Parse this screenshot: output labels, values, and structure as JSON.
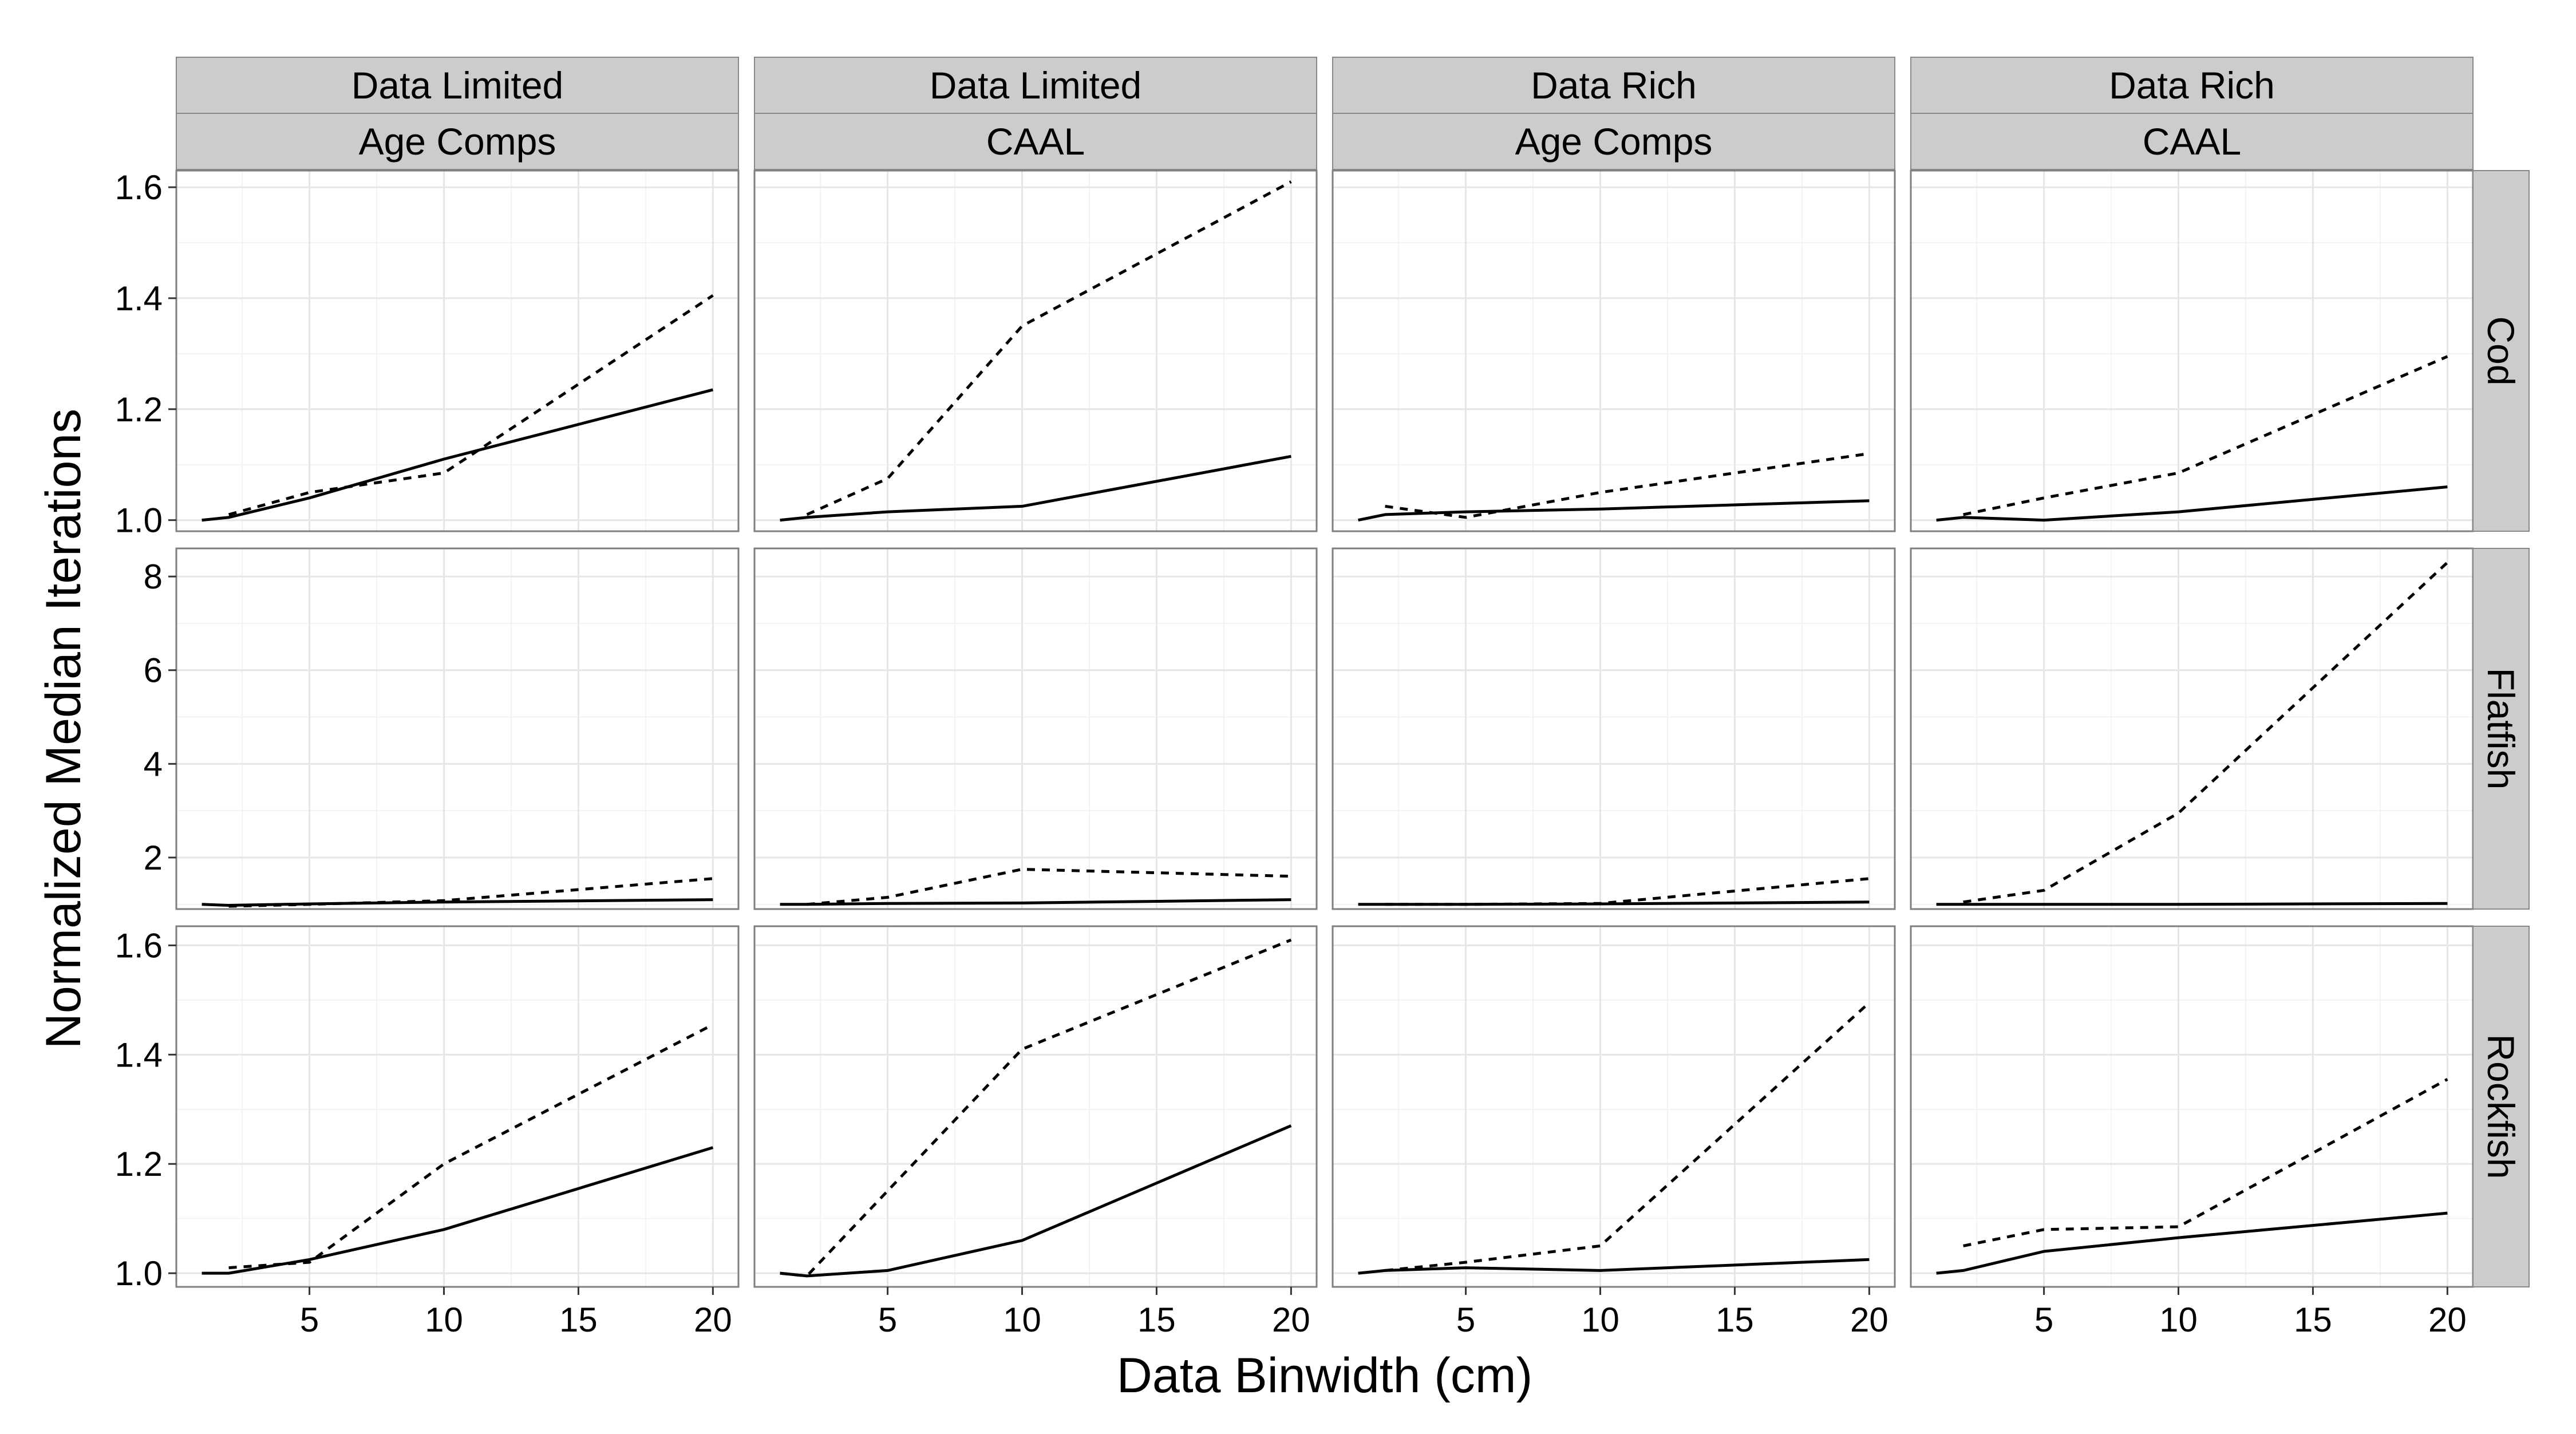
{
  "chart_data": {
    "type": "line",
    "xlabel": "Data Binwidth (cm)",
    "ylabel": "Normalized Median Iterations",
    "grid": true,
    "legend": "none",
    "x_ticks": [
      5,
      10,
      15,
      20
    ],
    "x_range": [
      0.05,
      20.95
    ],
    "col_strips": [
      {
        "top": "Data Limited",
        "bottom": "Age Comps"
      },
      {
        "top": "Data Limited",
        "bottom": "CAAL"
      },
      {
        "top": "Data Rich",
        "bottom": "Age Comps"
      },
      {
        "top": "Data Rich",
        "bottom": "CAAL"
      }
    ],
    "row_strips": [
      "Cod",
      "Flatfish",
      "Rockfish"
    ],
    "row_y_ranges": [
      [
        0.98,
        1.63
      ],
      [
        0.9,
        8.6
      ],
      [
        0.975,
        1.635
      ]
    ],
    "row_y_ticks": [
      [
        "1.0",
        "1.2",
        "1.4",
        "1.6"
      ],
      [
        "2",
        "4",
        "6",
        "8"
      ],
      [
        "1.0",
        "1.2",
        "1.4",
        "1.6"
      ]
    ],
    "row_y_tick_values": [
      [
        1.0,
        1.2,
        1.4,
        1.6
      ],
      [
        2,
        4,
        6,
        8
      ],
      [
        1.0,
        1.2,
        1.4,
        1.6
      ]
    ],
    "line_styles": {
      "solid": "#000000",
      "dashed": "#000000"
    },
    "panels": [
      {
        "row": "Cod",
        "col": 0,
        "solid": [
          [
            1,
            1.0
          ],
          [
            2,
            1.005
          ],
          [
            5,
            1.04
          ],
          [
            10,
            1.11
          ],
          [
            20,
            1.235
          ]
        ],
        "dashed": [
          [
            2,
            1.01
          ],
          [
            5,
            1.05
          ],
          [
            10,
            1.085
          ],
          [
            20,
            1.405
          ]
        ]
      },
      {
        "row": "Cod",
        "col": 1,
        "solid": [
          [
            1,
            1.0
          ],
          [
            2,
            1.005
          ],
          [
            5,
            1.015
          ],
          [
            10,
            1.025
          ],
          [
            20,
            1.115
          ]
        ],
        "dashed": [
          [
            2,
            1.01
          ],
          [
            5,
            1.075
          ],
          [
            10,
            1.35
          ],
          [
            20,
            1.61
          ]
        ]
      },
      {
        "row": "Cod",
        "col": 2,
        "solid": [
          [
            1,
            1.0
          ],
          [
            2,
            1.01
          ],
          [
            5,
            1.015
          ],
          [
            10,
            1.02
          ],
          [
            20,
            1.035
          ]
        ],
        "dashed": [
          [
            2,
            1.025
          ],
          [
            5,
            1.005
          ],
          [
            10,
            1.05
          ],
          [
            20,
            1.12
          ]
        ]
      },
      {
        "row": "Cod",
        "col": 3,
        "solid": [
          [
            1,
            1.0
          ],
          [
            2,
            1.005
          ],
          [
            5,
            1.0
          ],
          [
            10,
            1.015
          ],
          [
            20,
            1.06
          ]
        ],
        "dashed": [
          [
            2,
            1.01
          ],
          [
            5,
            1.04
          ],
          [
            10,
            1.085
          ],
          [
            20,
            1.295
          ]
        ]
      },
      {
        "row": "Flatfish",
        "col": 0,
        "solid": [
          [
            1,
            1.0
          ],
          [
            2,
            0.98
          ],
          [
            5,
            1.01
          ],
          [
            10,
            1.05
          ],
          [
            20,
            1.1
          ]
        ],
        "dashed": [
          [
            2,
            0.96
          ],
          [
            5,
            1.0
          ],
          [
            10,
            1.08
          ],
          [
            20,
            1.55
          ]
        ]
      },
      {
        "row": "Flatfish",
        "col": 1,
        "solid": [
          [
            1,
            1.0
          ],
          [
            2,
            1.0
          ],
          [
            5,
            1.02
          ],
          [
            10,
            1.03
          ],
          [
            20,
            1.1
          ]
        ],
        "dashed": [
          [
            2,
            1.0
          ],
          [
            5,
            1.15
          ],
          [
            10,
            1.75
          ],
          [
            20,
            1.6
          ]
        ]
      },
      {
        "row": "Flatfish",
        "col": 2,
        "solid": [
          [
            1,
            1.0
          ],
          [
            2,
            1.0
          ],
          [
            5,
            1.0
          ],
          [
            10,
            1.01
          ],
          [
            20,
            1.05
          ]
        ],
        "dashed": [
          [
            2,
            1.0
          ],
          [
            5,
            1.0
          ],
          [
            10,
            1.02
          ],
          [
            20,
            1.55
          ]
        ]
      },
      {
        "row": "Flatfish",
        "col": 3,
        "solid": [
          [
            1,
            1.0
          ],
          [
            2,
            1.0
          ],
          [
            5,
            1.0
          ],
          [
            10,
            1.0
          ],
          [
            20,
            1.02
          ]
        ],
        "dashed": [
          [
            2,
            1.05
          ],
          [
            5,
            1.3
          ],
          [
            10,
            2.95
          ],
          [
            20,
            8.3
          ]
        ]
      },
      {
        "row": "Rockfish",
        "col": 0,
        "solid": [
          [
            1,
            1.0
          ],
          [
            2,
            1.0
          ],
          [
            5,
            1.025
          ],
          [
            10,
            1.08
          ],
          [
            20,
            1.23
          ]
        ],
        "dashed": [
          [
            2,
            1.01
          ],
          [
            5,
            1.02
          ],
          [
            10,
            1.2
          ],
          [
            20,
            1.455
          ]
        ]
      },
      {
        "row": "Rockfish",
        "col": 1,
        "solid": [
          [
            1,
            1.0
          ],
          [
            2,
            0.995
          ],
          [
            5,
            1.005
          ],
          [
            10,
            1.06
          ],
          [
            20,
            1.27
          ]
        ],
        "dashed": [
          [
            1,
            1.0
          ],
          [
            2,
            0.995
          ],
          [
            10,
            1.41
          ],
          [
            20,
            1.61
          ]
        ]
      },
      {
        "row": "Rockfish",
        "col": 2,
        "solid": [
          [
            1,
            1.0
          ],
          [
            2,
            1.005
          ],
          [
            5,
            1.01
          ],
          [
            10,
            1.005
          ],
          [
            20,
            1.025
          ]
        ],
        "dashed": [
          [
            2,
            1.005
          ],
          [
            5,
            1.02
          ],
          [
            10,
            1.05
          ],
          [
            20,
            1.495
          ]
        ]
      },
      {
        "row": "Rockfish",
        "col": 3,
        "solid": [
          [
            1,
            1.0
          ],
          [
            2,
            1.005
          ],
          [
            5,
            1.04
          ],
          [
            10,
            1.065
          ],
          [
            20,
            1.11
          ]
        ],
        "dashed": [
          [
            2,
            1.05
          ],
          [
            5,
            1.08
          ],
          [
            10,
            1.085
          ],
          [
            20,
            1.355
          ]
        ]
      }
    ]
  }
}
